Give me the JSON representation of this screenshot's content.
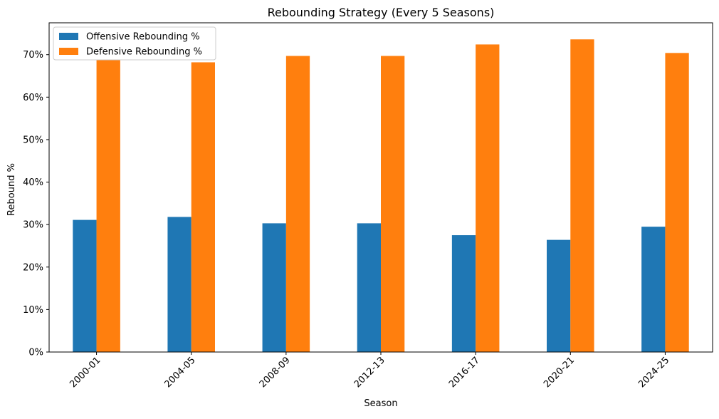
{
  "chart_data": {
    "type": "bar",
    "title": "Rebounding Strategy (Every 5 Seasons)",
    "xlabel": "Season",
    "ylabel": "Rebound %",
    "categories": [
      "2000-01",
      "2004-05",
      "2008-09",
      "2012-13",
      "2016-17",
      "2020-21",
      "2024-25"
    ],
    "series": [
      {
        "name": "Offensive Rebounding %",
        "color": "#1f77b4",
        "values": [
          31.1,
          31.8,
          30.3,
          30.3,
          27.5,
          26.4,
          29.5
        ]
      },
      {
        "name": "Defensive Rebounding %",
        "color": "#ff7f0e",
        "values": [
          68.9,
          68.2,
          69.7,
          69.7,
          72.4,
          73.6,
          70.4
        ]
      }
    ],
    "ylim": [
      0,
      77.5
    ],
    "yticks": [
      0,
      10,
      20,
      30,
      40,
      50,
      60,
      70
    ],
    "ytick_suffix": "%",
    "xtick_rotation": 45,
    "grid": false,
    "legend_position": "top-left"
  }
}
